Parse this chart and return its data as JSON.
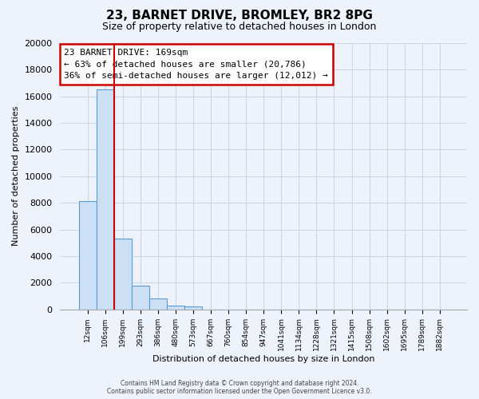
{
  "title": "23, BARNET DRIVE, BROMLEY, BR2 8PG",
  "subtitle": "Size of property relative to detached houses in London",
  "xlabel": "Distribution of detached houses by size in London",
  "ylabel": "Number of detached properties",
  "categories": [
    "12sqm",
    "106sqm",
    "199sqm",
    "293sqm",
    "386sqm",
    "480sqm",
    "573sqm",
    "667sqm",
    "760sqm",
    "854sqm",
    "947sqm",
    "1041sqm",
    "1134sqm",
    "1228sqm",
    "1321sqm",
    "1415sqm",
    "1508sqm",
    "1602sqm",
    "1695sqm",
    "1789sqm",
    "1882sqm"
  ],
  "values": [
    8100,
    16500,
    5300,
    1800,
    800,
    300,
    200,
    0,
    0,
    0,
    0,
    0,
    0,
    0,
    0,
    0,
    0,
    0,
    0,
    0,
    0
  ],
  "bar_fill_color": "#cce0f5",
  "bar_edge_color": "#5b9bd5",
  "marker_line_color": "#cc0000",
  "ylim": [
    0,
    20000
  ],
  "yticks": [
    0,
    2000,
    4000,
    6000,
    8000,
    10000,
    12000,
    14000,
    16000,
    18000,
    20000
  ],
  "annotation_title": "23 BARNET DRIVE: 169sqm",
  "annotation_line1": "← 63% of detached houses are smaller (20,786)",
  "annotation_line2": "36% of semi-detached houses are larger (12,012) →",
  "annotation_box_color": "white",
  "annotation_box_edge": "#cc0000",
  "footer_line1": "Contains HM Land Registry data © Crown copyright and database right 2024.",
  "footer_line2": "Contains public sector information licensed under the Open Government Licence v3.0.",
  "grid_color": "#c8d8e8",
  "background_color": "#eef2fb",
  "plot_bg_color": "#eef2fb"
}
